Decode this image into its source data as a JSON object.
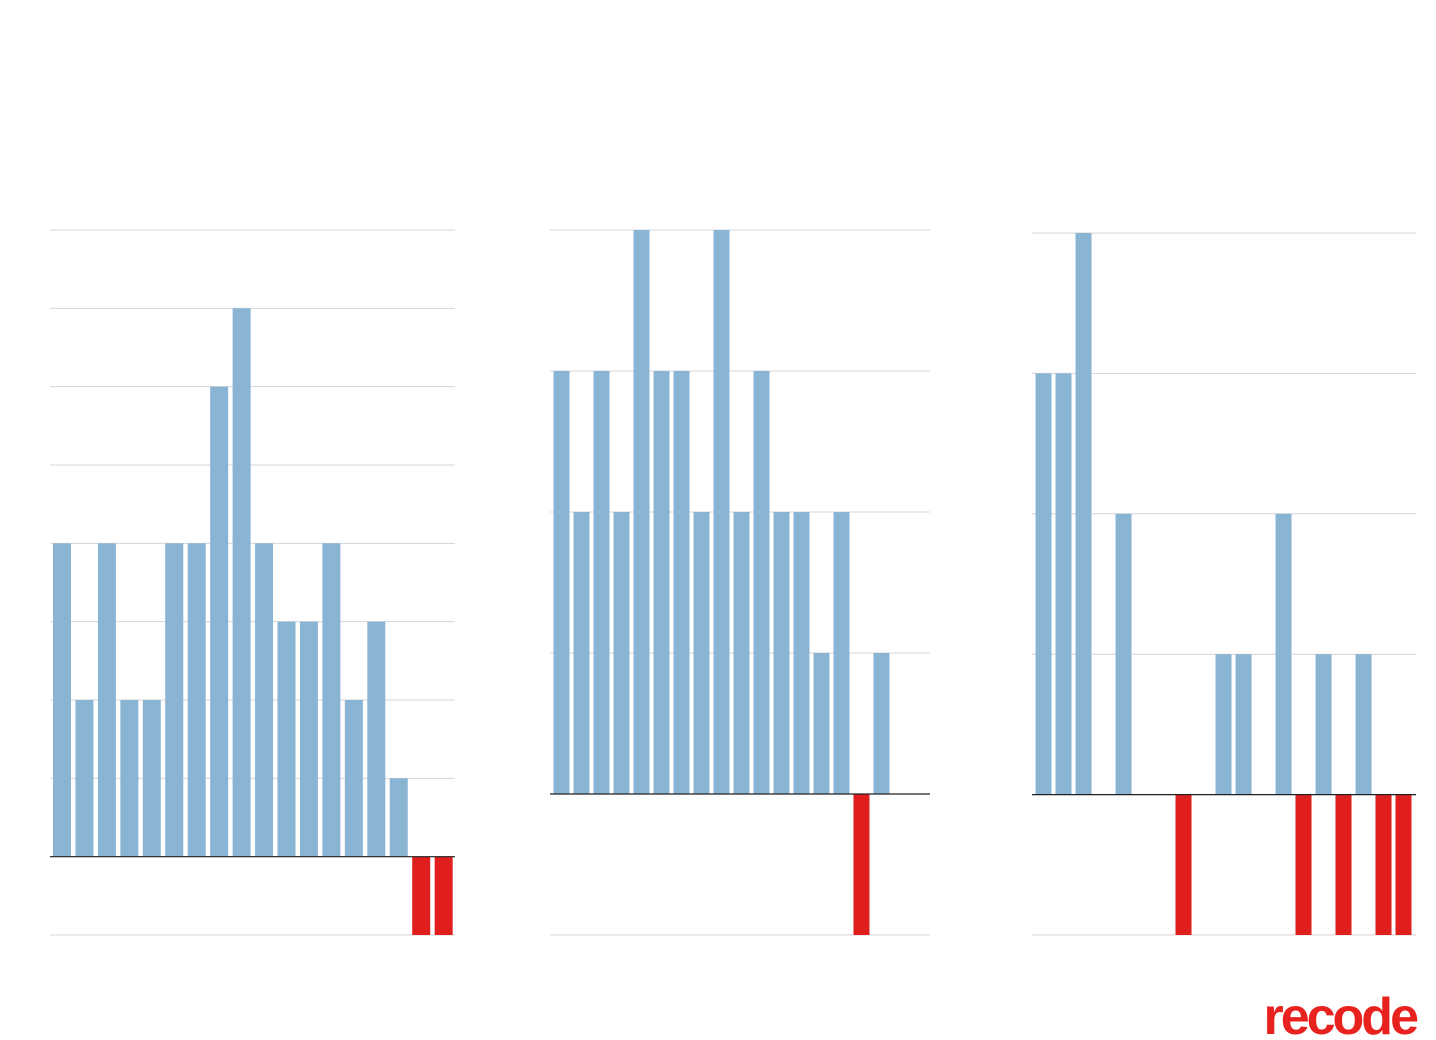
{
  "chart_data": [
    {
      "type": "bar",
      "values": [
        4,
        2,
        4,
        2,
        2,
        4,
        4,
        6,
        7,
        4,
        3,
        3,
        4,
        2,
        3,
        1,
        -1,
        -1
      ],
      "color": "#8ab4d4",
      "negative_color": "#e01e1e",
      "ylim": [
        -1,
        8
      ],
      "yticks": [
        -1,
        0,
        1,
        2,
        3,
        4,
        5,
        6,
        7,
        8
      ],
      "grid": true
    },
    {
      "type": "bar",
      "values": [
        3,
        2,
        3,
        2,
        4,
        3,
        3,
        2,
        4,
        2,
        3,
        2,
        2,
        1,
        2,
        -1,
        1
      ],
      "color": "#8ab4d4",
      "negative_color": "#e01e1e",
      "ylim": [
        -1,
        4
      ],
      "yticks": [
        -1,
        0,
        1,
        2,
        3,
        4
      ],
      "grid": true
    },
    {
      "type": "bar",
      "values": [
        3,
        3,
        4,
        0,
        2,
        0,
        0,
        -1,
        0,
        1,
        1,
        0,
        2,
        -1,
        1,
        -1,
        1,
        -1,
        -1
      ],
      "color": "#8ab4d4",
      "negative_color": "#e01e1e",
      "ylim": [
        -1,
        4
      ],
      "yticks": [
        -1,
        0,
        1,
        2,
        3,
        4
      ],
      "grid": true
    }
  ],
  "logo": "recode"
}
